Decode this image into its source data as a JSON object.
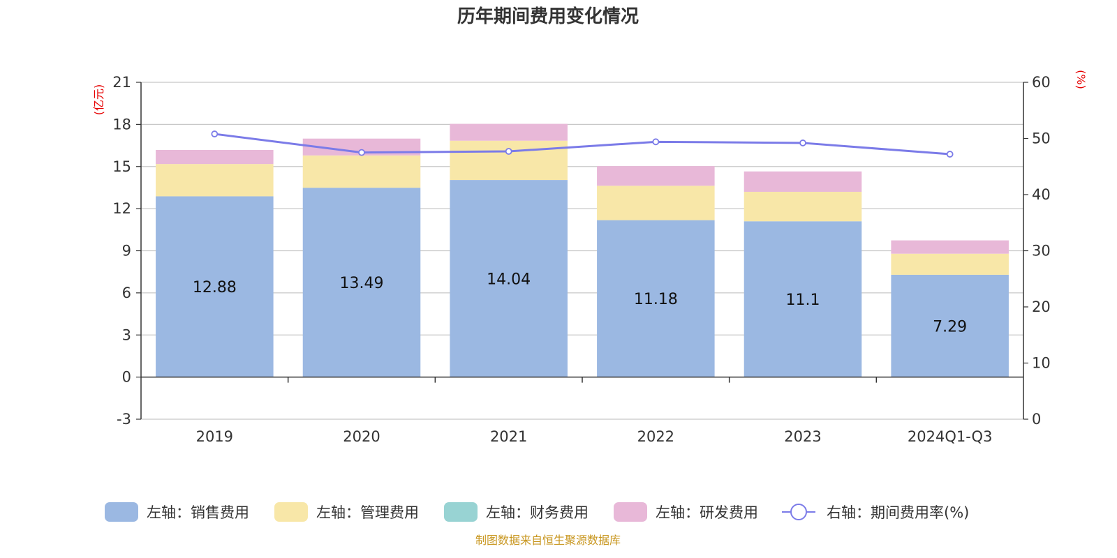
{
  "title": "历年期间费用变化情况",
  "source": "制图数据来自恒生聚源数据库",
  "colors": {
    "sales": "#9bb8e2",
    "admin": "#f8e7a8",
    "finance": "#98d3d3",
    "rnd": "#e8b8d8",
    "rate": "#7b7be8",
    "grid": "#c8c8c8",
    "axis": "#333333",
    "unit": "#e60000"
  },
  "chart_data": {
    "type": "bar",
    "stacked": true,
    "categories": [
      "2019",
      "2020",
      "2021",
      "2022",
      "2023",
      "2024Q1-Q3"
    ],
    "left_axis": {
      "unit": "(亿元)",
      "ticks": [
        -3,
        0,
        3,
        6,
        9,
        12,
        15,
        18,
        21
      ],
      "range": [
        -3,
        21
      ]
    },
    "right_axis": {
      "unit": "(%)",
      "ticks": [
        0,
        10,
        20,
        30,
        40,
        50,
        60
      ],
      "range": [
        0,
        60
      ]
    },
    "series": [
      {
        "key": "sales",
        "name": "左轴：销售费用",
        "values": [
          12.88,
          13.49,
          14.04,
          11.18,
          11.1,
          7.29
        ],
        "show_labels": true
      },
      {
        "key": "admin",
        "name": "左轴：管理费用",
        "values": [
          2.3,
          2.3,
          2.8,
          2.45,
          2.1,
          1.5
        ]
      },
      {
        "key": "finance",
        "name": "左轴：财务费用",
        "values": [
          0,
          0,
          0,
          0,
          0,
          0
        ]
      },
      {
        "key": "rnd",
        "name": "左轴：研发费用",
        "values": [
          1.0,
          1.2,
          1.2,
          1.4,
          1.45,
          0.95
        ]
      }
    ],
    "line": {
      "key": "rate",
      "name": "右轴：期间费用率(%)",
      "values": [
        50.8,
        47.5,
        47.7,
        49.4,
        49.2,
        47.2
      ]
    },
    "grid": true,
    "legend": "bottom"
  }
}
